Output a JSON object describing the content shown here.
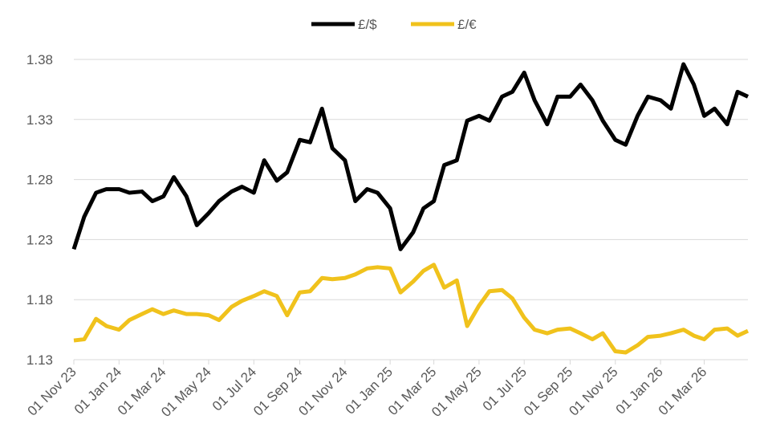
{
  "chart_data": {
    "type": "line",
    "x": [
      "01 Nov 23",
      "15 Nov 23",
      "01 Dec 23",
      "15 Dec 23",
      "01 Jan 24",
      "15 Jan 24",
      "01 Feb 24",
      "15 Feb 24",
      "01 Mar 24",
      "15 Mar 24",
      "01 Apr 24",
      "15 Apr 24",
      "01 May 24",
      "15 May 24",
      "01 Jun 24",
      "15 Jun 24",
      "01 Jul 24",
      "15 Jul 24",
      "01 Aug 24",
      "15 Aug 24",
      "01 Sep 24",
      "15 Sep 24",
      "01 Oct 24",
      "15 Oct 24",
      "01 Nov 24",
      "15 Nov 24",
      "01 Dec 24",
      "15 Dec 24",
      "01 Jan 25",
      "15 Jan 25",
      "01 Feb 25",
      "15 Feb 25",
      "01 Mar 25",
      "15 Mar 25",
      "01 Apr 25",
      "15 Apr 25",
      "01 May 25",
      "15 May 25",
      "01 Jun 25",
      "15 Jun 25",
      "01 Jul 25",
      "15 Jul 25",
      "01 Aug 25",
      "15 Aug 25",
      "01 Sep 25",
      "15 Sep 25",
      "01 Oct 25",
      "15 Oct 25",
      "01 Nov 25",
      "15 Nov 25",
      "01 Dec 25",
      "15 Dec 25",
      "01 Jan 26",
      "15 Jan 26",
      "01 Feb 26",
      "15 Feb 26",
      "01 Mar 26",
      "15 Mar 26",
      "01 Apr 26",
      "15 Apr 26",
      "29 Apr 26"
    ],
    "series": [
      {
        "name": "£/$",
        "color": "#000000",
        "values": [
          1.222,
          1.249,
          1.269,
          1.272,
          1.272,
          1.269,
          1.27,
          1.262,
          1.266,
          1.282,
          1.266,
          1.242,
          1.252,
          1.262,
          1.27,
          1.274,
          1.269,
          1.296,
          1.279,
          1.286,
          1.313,
          1.311,
          1.339,
          1.306,
          1.296,
          1.262,
          1.272,
          1.269,
          1.256,
          1.222,
          1.236,
          1.256,
          1.262,
          1.292,
          1.296,
          1.329,
          1.333,
          1.329,
          1.349,
          1.353,
          1.369,
          1.346,
          1.326,
          1.349,
          1.349,
          1.359,
          1.346,
          1.329,
          1.313,
          1.309,
          1.333,
          1.349,
          1.346,
          1.339,
          1.376,
          1.359,
          1.333,
          1.339,
          1.326,
          1.353,
          1.349
        ]
      },
      {
        "name": "£/€",
        "color": "#f0c21c",
        "values": [
          1.146,
          1.147,
          1.164,
          1.158,
          1.155,
          1.163,
          1.168,
          1.172,
          1.168,
          1.171,
          1.168,
          1.168,
          1.167,
          1.163,
          1.174,
          1.179,
          1.183,
          1.187,
          1.183,
          1.167,
          1.186,
          1.187,
          1.198,
          1.197,
          1.198,
          1.201,
          1.206,
          1.207,
          1.206,
          1.186,
          1.195,
          1.204,
          1.209,
          1.19,
          1.196,
          1.158,
          1.175,
          1.187,
          1.188,
          1.181,
          1.165,
          1.155,
          1.152,
          1.155,
          1.156,
          1.152,
          1.147,
          1.152,
          1.137,
          1.136,
          1.142,
          1.149,
          1.15,
          1.152,
          1.155,
          1.15,
          1.147,
          1.155,
          1.156,
          1.15,
          1.154
        ]
      }
    ],
    "xlim": [
      "01 Nov 23",
      "29 Apr 26"
    ],
    "xticks": [
      "01 Nov 23",
      "01 Jan 24",
      "01 Mar 24",
      "01 May 24",
      "01 Jul 24",
      "01 Sep 24",
      "01 Nov 24",
      "01 Jan 25",
      "01 Mar 25",
      "01 May 25",
      "01 Jul 25",
      "01 Sep 25",
      "01 Nov 25",
      "01 Jan 26",
      "01 Mar 26"
    ],
    "ylim": [
      1.13,
      1.38
    ],
    "yticks": [
      1.13,
      1.18,
      1.23,
      1.28,
      1.33,
      1.38
    ],
    "grid": true,
    "legend": "top"
  }
}
